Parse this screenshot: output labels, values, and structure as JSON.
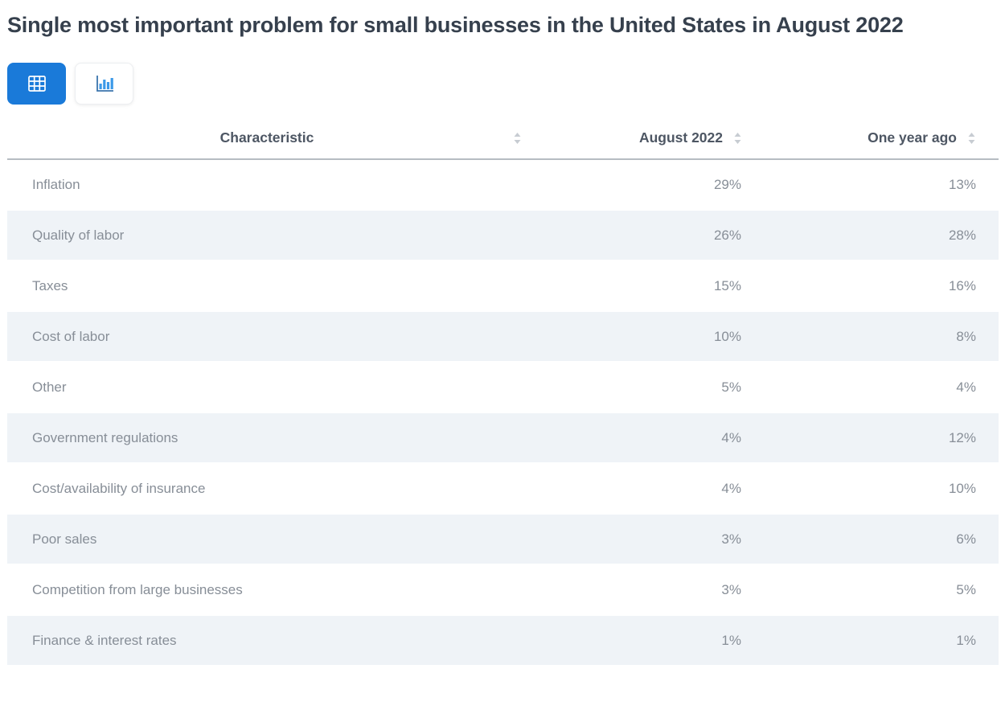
{
  "page": {
    "title": "Single most important problem for small businesses in the United States in August 2022"
  },
  "toolbar": {
    "active_view": "table",
    "buttons": [
      {
        "icon": "table-grid-icon",
        "view": "table",
        "active": true
      },
      {
        "icon": "bar-chart-icon",
        "view": "chart",
        "active": false
      }
    ]
  },
  "colors": {
    "accent_blue": "#1a7ad9",
    "striped_row_bg": "#eff3f7",
    "title_text": "#36404d",
    "header_text": "#4d5663",
    "body_text": "#878e97",
    "sort_icon": "#c7ccd2",
    "header_rule": "#b6bcc2"
  },
  "table": {
    "columns": [
      {
        "label": "Characteristic",
        "sortable": true
      },
      {
        "label": "August 2022",
        "sortable": true
      },
      {
        "label": "One year ago",
        "sortable": true
      }
    ]
  },
  "chart_data": {
    "type": "table",
    "title": "Single most important problem for small businesses in the United States in August 2022",
    "categories": [
      "Inflation",
      "Quality of labor",
      "Taxes",
      "Cost of labor",
      "Other",
      "Government regulations",
      "Cost/availability of insurance",
      "Poor sales",
      "Competition from large businesses",
      "Finance & interest rates"
    ],
    "series": [
      {
        "name": "August 2022",
        "unit": "%",
        "values": [
          29,
          26,
          15,
          10,
          5,
          4,
          4,
          3,
          3,
          1
        ]
      },
      {
        "name": "One year ago",
        "unit": "%",
        "values": [
          13,
          28,
          16,
          8,
          4,
          12,
          10,
          6,
          5,
          1
        ]
      }
    ]
  }
}
